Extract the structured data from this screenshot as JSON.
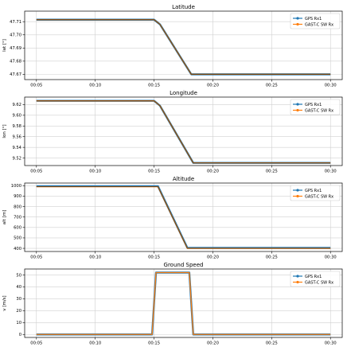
{
  "chart_data": [
    {
      "type": "line",
      "title": "Latitude",
      "ylabel": "lat [°]",
      "xlim": [
        "00:04:00",
        "00:31:00"
      ],
      "ylim": [
        47.666,
        47.718
      ],
      "yticks": [
        47.67,
        47.68,
        47.69,
        47.7,
        47.71
      ],
      "yticklabels": [
        "47.67",
        "47.68",
        "47.69",
        "47.70",
        "47.71"
      ],
      "xticks": [
        "00:05:00",
        "00:10:00",
        "00:15:00",
        "00:20:00",
        "00:25:00",
        "00:30:00"
      ],
      "xticklabels": [
        "00:05",
        "00:10",
        "00:15",
        "00:20",
        "00:25",
        "00:30"
      ],
      "legend": "top-right",
      "grid": true,
      "series": [
        {
          "name": "GPS Rx1",
          "color": "#1f77b4",
          "x": [
            "00:05:00",
            "00:15:00",
            "00:15:30",
            "00:18:10",
            "00:30:00"
          ],
          "y": [
            47.7115,
            47.7115,
            47.708,
            47.67,
            47.67
          ]
        },
        {
          "name": "GAST-C SW Rx",
          "color": "#ff7f0e",
          "x": [
            "00:05:00",
            "00:15:00",
            "00:15:30",
            "00:18:10",
            "00:30:00"
          ],
          "y": [
            47.7115,
            47.7115,
            47.708,
            47.67,
            47.67
          ]
        }
      ]
    },
    {
      "type": "line",
      "title": "Longitude",
      "ylabel": "lon [°]",
      "xlim": [
        "00:04:00",
        "00:31:00"
      ],
      "ylim": [
        9.506,
        9.634
      ],
      "yticks": [
        9.52,
        9.54,
        9.56,
        9.58,
        9.6,
        9.62
      ],
      "yticklabels": [
        "9.52",
        "9.54",
        "9.56",
        "9.58",
        "9.60",
        "9.62"
      ],
      "xticks": [
        "00:05:00",
        "00:10:00",
        "00:15:00",
        "00:20:00",
        "00:25:00",
        "00:30:00"
      ],
      "xticklabels": [
        "00:05",
        "00:10",
        "00:15",
        "00:20",
        "00:25",
        "00:30"
      ],
      "legend": "top-right",
      "grid": true,
      "series": [
        {
          "name": "GPS Rx1",
          "color": "#1f77b4",
          "x": [
            "00:05:00",
            "00:15:00",
            "00:15:30",
            "00:18:20",
            "00:30:00"
          ],
          "y": [
            9.627,
            9.627,
            9.618,
            9.511,
            9.511
          ]
        },
        {
          "name": "GAST-C SW Rx",
          "color": "#ff7f0e",
          "x": [
            "00:05:00",
            "00:15:00",
            "00:15:30",
            "00:18:20",
            "00:30:00"
          ],
          "y": [
            9.627,
            9.627,
            9.618,
            9.511,
            9.511
          ]
        }
      ]
    },
    {
      "type": "line",
      "title": "Altitude",
      "ylabel": "alt [m]",
      "xlim": [
        "00:04:00",
        "00:31:00"
      ],
      "ylim": [
        370,
        1025
      ],
      "yticks": [
        400,
        500,
        600,
        700,
        800,
        900,
        1000
      ],
      "yticklabels": [
        "400",
        "500",
        "600",
        "700",
        "800",
        "900",
        "1000"
      ],
      "xticks": [
        "00:05:00",
        "00:10:00",
        "00:15:00",
        "00:20:00",
        "00:25:00",
        "00:30:00"
      ],
      "xticklabels": [
        "00:05",
        "00:10",
        "00:15",
        "00:20",
        "00:25",
        "00:30"
      ],
      "legend": "top-right",
      "grid": true,
      "series": [
        {
          "name": "GPS Rx1",
          "color": "#1f77b4",
          "x": [
            "00:05:00",
            "00:15:20",
            "00:17:50",
            "00:30:00"
          ],
          "y": [
            995,
            995,
            405,
            405
          ]
        },
        {
          "name": "GAST-C SW Rx",
          "color": "#ff7f0e",
          "x": [
            "00:05:00",
            "00:15:20",
            "00:17:50",
            "00:30:00"
          ],
          "y": [
            990,
            990,
            400,
            400
          ]
        }
      ]
    },
    {
      "type": "line",
      "title": "Ground Speed",
      "ylabel": "v [m/s]",
      "xlim": [
        "00:04:00",
        "00:31:00"
      ],
      "ylim": [
        -2.5,
        55
      ],
      "yticks": [
        0,
        10,
        20,
        30,
        40,
        50
      ],
      "yticklabels": [
        "0",
        "10",
        "20",
        "30",
        "40",
        "50"
      ],
      "xticks": [
        "00:05:00",
        "00:10:00",
        "00:15:00",
        "00:20:00",
        "00:25:00",
        "00:30:00"
      ],
      "xticklabels": [
        "00:05",
        "00:10",
        "00:15",
        "00:20",
        "00:25",
        "00:30"
      ],
      "legend": "top-right",
      "grid": true,
      "series": [
        {
          "name": "GPS Rx1",
          "color": "#1f77b4",
          "x": [
            "00:05:00",
            "00:14:50",
            "00:15:10",
            "00:18:00",
            "00:18:20",
            "00:30:00"
          ],
          "y": [
            0,
            0,
            52,
            52,
            0,
            0
          ]
        },
        {
          "name": "GAST-C SW Rx",
          "color": "#ff7f0e",
          "x": [
            "00:05:00",
            "00:14:50",
            "00:15:10",
            "00:18:00",
            "00:18:20",
            "00:30:00"
          ],
          "y": [
            0,
            0,
            52,
            52,
            0,
            0
          ]
        }
      ]
    }
  ]
}
